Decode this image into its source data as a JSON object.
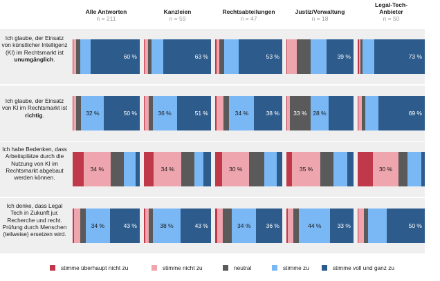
{
  "colors": {
    "stimme_ueberhaupt_nicht_zu": "#c0394b",
    "stimme_nicht_zu": "#eea5ad",
    "neutral": "#5a5a5a",
    "stimme_zu": "#7ab8f5",
    "stimme_voll_und_ganz_zu": "#2c5b8c",
    "band": "#efefef"
  },
  "questions": [
    {
      "pre": "Ich glaube, der Einsatz von künstlicher Intelligenz (KI) im Rechtsmarkt ist ",
      "bold": "unumgänglich",
      "post": "."
    },
    {
      "pre": "Ich glaube, der Einsatz von KI im Rechtsmarkt ist ",
      "bold": "richtig",
      "post": "."
    },
    {
      "pre": "Ich habe Bedenken, dass Arbeitsplätze durch die Nutzung von KI im Rechtsmarkt abgebaut werden können.",
      "bold": "",
      "post": ""
    },
    {
      "pre": "Ich denke, dass Legal Tech in Zukunft jur. Recherche und recht. Prüfung durch Menschen (teilweise) ersetzen wird.",
      "bold": "",
      "post": ""
    }
  ],
  "groups": [
    {
      "name": "Alle Antworten",
      "n": "n = 211"
    },
    {
      "name": "Kanzleien",
      "n": "n = 59"
    },
    {
      "name": "Rechtsabteilungen",
      "n": "n = 47"
    },
    {
      "name": "Justiz/Verwaltung",
      "n": "n = 18"
    },
    {
      "name": "Legal-Tech-Anbieter",
      "n": "n = 50"
    }
  ],
  "legend": [
    {
      "label": "stimme überhaupt nicht zu",
      "color": "#c0394b"
    },
    {
      "label": "stimme nicht zu",
      "color": "#eea5ad"
    },
    {
      "label": "neutral",
      "color": "#5a5a5a"
    },
    {
      "label": "stimme zu",
      "color": "#7ab8f5"
    },
    {
      "label": "stimme voll und ganz zu",
      "color": "#2c5b8c"
    }
  ],
  "chart_data": {
    "type": "bar",
    "stacked": true,
    "percent": true,
    "categories": [
      "stimme überhaupt nicht zu",
      "stimme nicht zu",
      "neutral",
      "stimme zu",
      "stimme voll und ganz zu"
    ],
    "rows": [
      {
        "values": [
          [
            1,
            3,
            5,
            13,
            60
          ],
          [
            1,
            4,
            5,
            15,
            63
          ],
          [
            2,
            3,
            6,
            18,
            53
          ],
          [
            1,
            14,
            20,
            24,
            39
          ],
          [
            2,
            2,
            3,
            17,
            73
          ]
        ],
        "labels": [
          [
            null,
            null,
            null,
            null,
            "60 %"
          ],
          [
            null,
            null,
            null,
            null,
            "63 %"
          ],
          [
            null,
            null,
            null,
            null,
            "53 %"
          ],
          [
            null,
            null,
            null,
            null,
            "39 %"
          ],
          [
            null,
            null,
            null,
            null,
            "73 %"
          ]
        ]
      },
      {
        "values": [
          [
            1,
            4,
            7,
            32,
            50
          ],
          [
            1,
            6,
            6,
            36,
            51
          ],
          [
            2,
            9,
            8,
            34,
            38
          ],
          [
            1,
            4,
            33,
            28,
            39
          ],
          [
            1,
            5,
            5,
            20,
            69
          ]
        ],
        "labels": [
          [
            null,
            null,
            null,
            "32 %",
            "50 %"
          ],
          [
            null,
            null,
            null,
            "36 %",
            "51 %"
          ],
          [
            null,
            null,
            null,
            "34 %",
            "38 %"
          ],
          [
            null,
            null,
            "33 %",
            "28 %",
            null
          ],
          [
            null,
            null,
            null,
            null,
            "69 %"
          ]
        ]
      },
      {
        "values": [
          [
            14,
            34,
            17,
            15,
            5
          ],
          [
            12,
            34,
            16,
            11,
            9
          ],
          [
            8,
            30,
            17,
            14,
            6
          ],
          [
            7,
            35,
            16,
            17,
            8
          ],
          [
            18,
            30,
            11,
            16,
            4
          ]
        ],
        "labels": [
          [
            null,
            "34 %",
            null,
            null,
            null
          ],
          [
            null,
            "34 %",
            null,
            null,
            null
          ],
          [
            null,
            "30 %",
            null,
            null,
            null
          ],
          [
            null,
            "35 %",
            null,
            null,
            null
          ],
          [
            null,
            "30 %",
            null,
            null,
            null
          ]
        ]
      },
      {
        "values": [
          [
            2,
            9,
            8,
            34,
            43
          ],
          [
            2,
            5,
            6,
            38,
            43
          ],
          [
            3,
            8,
            12,
            34,
            36
          ],
          [
            2,
            8,
            8,
            44,
            33
          ],
          [
            1,
            7,
            6,
            24,
            50
          ]
        ],
        "labels": [
          [
            null,
            null,
            null,
            "34 %",
            "43 %"
          ],
          [
            null,
            null,
            null,
            "38 %",
            "43 %"
          ],
          [
            null,
            null,
            null,
            "34 %",
            "36 %"
          ],
          [
            null,
            null,
            null,
            "44 %",
            "33 %"
          ],
          [
            null,
            null,
            null,
            null,
            "50 %"
          ]
        ]
      }
    ]
  }
}
